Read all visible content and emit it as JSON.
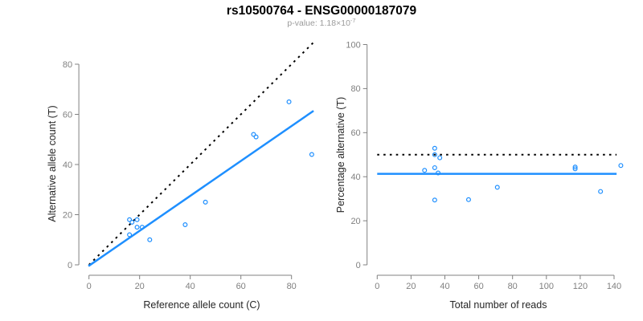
{
  "header": {
    "title": "rs10500764 - ENSG00000187079",
    "pvalue_text": "p-value: 1.18×10",
    "pvalue_exponent": "-7"
  },
  "colors": {
    "accent_blue": "#1E8FFF",
    "line_black": "#000000",
    "axis_gray": "#808080",
    "tick_label_gray": "#808080",
    "axis_title_dark": "#262626",
    "subtitle_gray": "#9B9B9B",
    "background": "#FFFFFF"
  },
  "chart_data": [
    {
      "id": "allele-count-scatter",
      "type": "scatter",
      "xlabel": "Reference allele count (C)",
      "ylabel": "Alternative allele count (T)",
      "xticks": [
        0,
        20,
        40,
        60,
        80
      ],
      "yticks": [
        0,
        20,
        40,
        60,
        80
      ],
      "xlim": [
        0,
        88
      ],
      "ylim": [
        0,
        88
      ],
      "grid": false,
      "points": [
        [
          16,
          18
        ],
        [
          17,
          17
        ],
        [
          19,
          18
        ],
        [
          19,
          15
        ],
        [
          21,
          15
        ],
        [
          16,
          12
        ],
        [
          24,
          10
        ],
        [
          38,
          16
        ],
        [
          46,
          25
        ],
        [
          65,
          52
        ],
        [
          66,
          51
        ],
        [
          79,
          65
        ],
        [
          88,
          44
        ]
      ],
      "lines": [
        {
          "name": "identity-line",
          "style": "dotted",
          "color": "#000000",
          "x1": 0,
          "y1": 0,
          "x2": 88.5,
          "y2": 88.5
        },
        {
          "name": "regression-line",
          "style": "solid",
          "color": "#1E8FFF",
          "x1": -0.2,
          "y1": -0.5,
          "x2": 88.7,
          "y2": 61.4
        }
      ]
    },
    {
      "id": "percentage-alternative-scatter",
      "type": "scatter",
      "xlabel": "Total number of reads",
      "ylabel": "Percentage alternative (T)",
      "xticks": [
        0,
        20,
        40,
        60,
        80,
        100,
        120,
        140
      ],
      "yticks": [
        0,
        20,
        40,
        60,
        80,
        100
      ],
      "xlim": [
        0,
        145
      ],
      "ylim": [
        0,
        100
      ],
      "grid": false,
      "points": [
        [
          34,
          52.9
        ],
        [
          34,
          50.0
        ],
        [
          37,
          48.6
        ],
        [
          34,
          44.1
        ],
        [
          36,
          41.7
        ],
        [
          28,
          42.9
        ],
        [
          34,
          29.4
        ],
        [
          54,
          29.6
        ],
        [
          71,
          35.2
        ],
        [
          117,
          44.4
        ],
        [
          117,
          43.6
        ],
        [
          144,
          45.1
        ],
        [
          132,
          33.3
        ]
      ],
      "lines": [
        {
          "name": "fifty-percent-line",
          "style": "dotted",
          "color": "#000000",
          "x1": 0,
          "y1": 50,
          "x2": 141.5,
          "y2": 50
        },
        {
          "name": "mean-percentage-line",
          "style": "solid",
          "color": "#1E8FFF",
          "x1": 0,
          "y1": 41.3,
          "x2": 141.5,
          "y2": 41.3
        }
      ]
    }
  ]
}
